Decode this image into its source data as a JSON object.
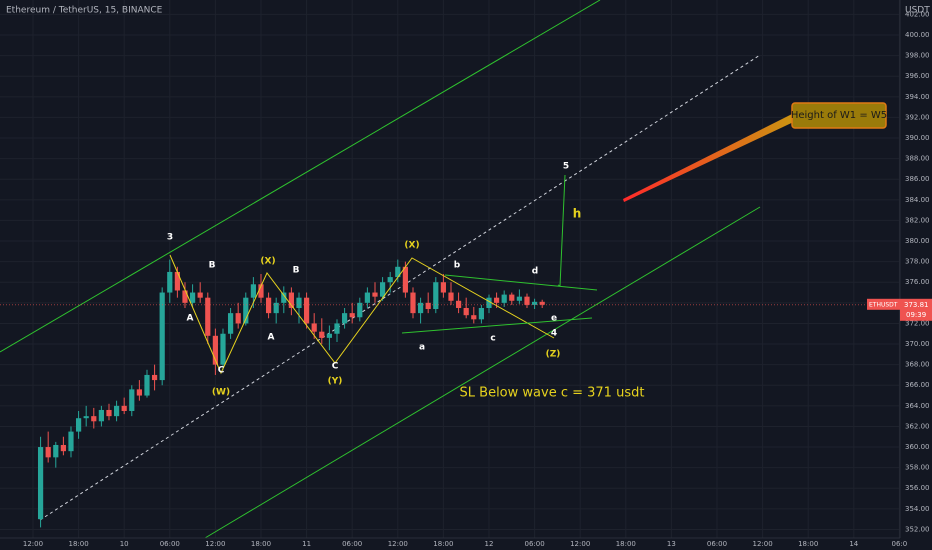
{
  "chart_data": {
    "type": "candlestick",
    "title": "Ethereum / TetherUS, 15, BINANCE",
    "y_axis_label": "USDT",
    "price_tag": {
      "symbol": "ETHUSDT",
      "countdown": "09:39"
    },
    "colors": {
      "up": "#26a69a",
      "down": "#ef5350",
      "background": "#131722"
    },
    "grid": true,
    "xlim": [
      -4.34,
      114.08
    ],
    "ylim": [
      351.17,
      403.4
    ],
    "xticks": [
      {
        "value": 0,
        "label": "12:00"
      },
      {
        "value": 6,
        "label": "18:00"
      },
      {
        "value": 12,
        "label": "10"
      },
      {
        "value": 18,
        "label": "06:00"
      },
      {
        "value": 24,
        "label": "12:00"
      },
      {
        "value": 30,
        "label": "18:00"
      },
      {
        "value": 36,
        "label": "11"
      },
      {
        "value": 42,
        "label": "06:00"
      },
      {
        "value": 48,
        "label": "12:00"
      },
      {
        "value": 54,
        "label": "18:00"
      },
      {
        "value": 60,
        "label": "12"
      },
      {
        "value": 66,
        "label": "06:00"
      },
      {
        "value": 72,
        "label": "12:00"
      },
      {
        "value": 78,
        "label": "18:00"
      },
      {
        "value": 84,
        "label": "13"
      },
      {
        "value": 90,
        "label": "06:00"
      },
      {
        "value": 96,
        "label": "12:00"
      },
      {
        "value": 102,
        "label": "18:00"
      },
      {
        "value": 108,
        "label": "14"
      },
      {
        "value": 114,
        "label": "06:0"
      }
    ],
    "yticks": [
      {
        "value": 352,
        "label": "352.00"
      },
      {
        "value": 354,
        "label": "354.00"
      },
      {
        "value": 356,
        "label": "356.00"
      },
      {
        "value": 358,
        "label": "358.00"
      },
      {
        "value": 360,
        "label": "360.00"
      },
      {
        "value": 362,
        "label": "362.00"
      },
      {
        "value": 364,
        "label": "364.00"
      },
      {
        "value": 366,
        "label": "366.00"
      },
      {
        "value": 368,
        "label": "368.00"
      },
      {
        "value": 370,
        "label": "370.00"
      },
      {
        "value": 372,
        "label": "372.00"
      },
      {
        "value": 374,
        "label": "374.00"
      },
      {
        "value": 376,
        "label": "376.00"
      },
      {
        "value": 378,
        "label": "378.00"
      },
      {
        "value": 380,
        "label": "380.00"
      },
      {
        "value": 382,
        "label": "382.00"
      },
      {
        "value": 384,
        "label": "384.00"
      },
      {
        "value": 386,
        "label": "386.00"
      },
      {
        "value": 388,
        "label": "388.00"
      },
      {
        "value": 390,
        "label": "390.00"
      },
      {
        "value": 392,
        "label": "392.00"
      },
      {
        "value": 394,
        "label": "394.00"
      },
      {
        "value": 396,
        "label": "396.00"
      },
      {
        "value": 398,
        "label": "398.00"
      },
      {
        "value": 400,
        "label": "400.00"
      },
      {
        "value": 402,
        "label": "402.00"
      }
    ],
    "series": [
      {
        "name": "ETHUSDT",
        "x": [
          1,
          2,
          3,
          4,
          5,
          6,
          7,
          8,
          9,
          10,
          11,
          12,
          13,
          14,
          15,
          16,
          17,
          18,
          19,
          20,
          21,
          22,
          23,
          24,
          25,
          26,
          27,
          28,
          29,
          30,
          31,
          32,
          33,
          34,
          35,
          36,
          37,
          38,
          39,
          40,
          41,
          42,
          43,
          44,
          45,
          46,
          47,
          48,
          49,
          50,
          51,
          52,
          53,
          54,
          55,
          56,
          57,
          58,
          59,
          60,
          61,
          62,
          63,
          64,
          65,
          66,
          67
        ],
        "open": [
          353.0,
          360.0,
          359.0,
          360.2,
          359.6,
          361.5,
          362.8,
          363.0,
          362.5,
          363.6,
          363.0,
          364.0,
          363.5,
          365.6,
          365.0,
          367.0,
          366.5,
          375.0,
          377.0,
          375.2,
          374.0,
          375.0,
          374.5,
          370.8,
          368.0,
          371.0,
          373.0,
          372.0,
          374.5,
          375.8,
          374.5,
          373.0,
          374.0,
          375.0,
          373.5,
          374.5,
          372.0,
          371.2,
          370.6,
          371.0,
          372.0,
          373.0,
          372.6,
          374.0,
          375.0,
          374.6,
          376.0,
          376.5,
          377.5,
          375.0,
          373.0,
          374.0,
          373.4,
          376.0,
          375.0,
          374.2,
          373.5,
          372.8,
          372.4,
          373.5,
          374.5,
          374.0,
          374.8,
          374.2,
          374.6,
          373.8,
          374.1
        ],
        "high": [
          361.0,
          361.5,
          360.5,
          361.0,
          362.0,
          363.5,
          364.0,
          363.8,
          364.0,
          364.2,
          364.5,
          364.8,
          366.0,
          366.5,
          367.5,
          368.0,
          375.5,
          378.2,
          377.5,
          376.0,
          375.8,
          376.0,
          375.0,
          371.5,
          371.5,
          373.5,
          374.0,
          375.0,
          376.5,
          376.8,
          375.0,
          374.5,
          375.6,
          375.5,
          375.0,
          375.0,
          373.0,
          372.5,
          371.8,
          372.4,
          373.5,
          374.0,
          374.5,
          375.5,
          376.0,
          376.5,
          377.0,
          378.2,
          378.0,
          375.5,
          374.5,
          375.0,
          376.5,
          376.8,
          376.0,
          375.0,
          374.5,
          373.6,
          373.8,
          374.8,
          375.0,
          375.2,
          375.0,
          375.3,
          374.9,
          374.4,
          374.3
        ],
        "low": [
          352.2,
          358.5,
          358.0,
          359.2,
          359.0,
          360.8,
          362.0,
          361.8,
          362.0,
          362.6,
          362.5,
          363.2,
          363.0,
          364.5,
          364.8,
          365.5,
          366.0,
          374.0,
          374.5,
          373.5,
          373.6,
          374.0,
          370.0,
          367.0,
          367.5,
          370.5,
          371.5,
          371.8,
          373.5,
          374.0,
          372.5,
          372.0,
          373.0,
          372.8,
          372.0,
          371.5,
          370.5,
          370.0,
          369.4,
          370.2,
          371.5,
          372.0,
          372.2,
          373.5,
          374.0,
          374.2,
          375.0,
          376.0,
          374.5,
          372.5,
          372.0,
          373.0,
          373.0,
          374.5,
          373.8,
          373.0,
          372.5,
          372.0,
          372.0,
          373.0,
          373.5,
          373.6,
          373.8,
          373.9,
          373.5,
          373.4,
          373.5
        ],
        "close": [
          360.0,
          359.0,
          360.2,
          359.6,
          361.5,
          362.8,
          363.0,
          362.5,
          363.6,
          363.0,
          364.0,
          363.5,
          365.6,
          365.0,
          367.0,
          366.5,
          375.0,
          377.0,
          375.2,
          374.0,
          375.0,
          374.5,
          370.8,
          368.0,
          371.0,
          373.0,
          372.0,
          374.5,
          375.8,
          374.5,
          373.0,
          374.0,
          375.0,
          373.5,
          374.5,
          372.0,
          371.2,
          370.6,
          371.0,
          372.0,
          373.0,
          372.6,
          374.0,
          375.0,
          374.6,
          376.0,
          376.5,
          377.5,
          375.0,
          373.0,
          374.0,
          373.4,
          376.0,
          375.0,
          374.2,
          373.5,
          372.8,
          372.4,
          373.5,
          374.5,
          374.0,
          374.8,
          374.2,
          374.6,
          373.8,
          374.1,
          373.81
        ]
      }
    ],
    "annotations": [
      "3",
      "A",
      "B",
      "(X)",
      "C",
      "(W)",
      "B",
      "A",
      "C",
      "(Y)",
      "(X)",
      "b",
      "d",
      "a",
      "c",
      "e",
      "4",
      "(Z)",
      "5",
      "h",
      "SL Below wave c = 371 usdt",
      "Height of W1 = W5"
    ]
  }
}
